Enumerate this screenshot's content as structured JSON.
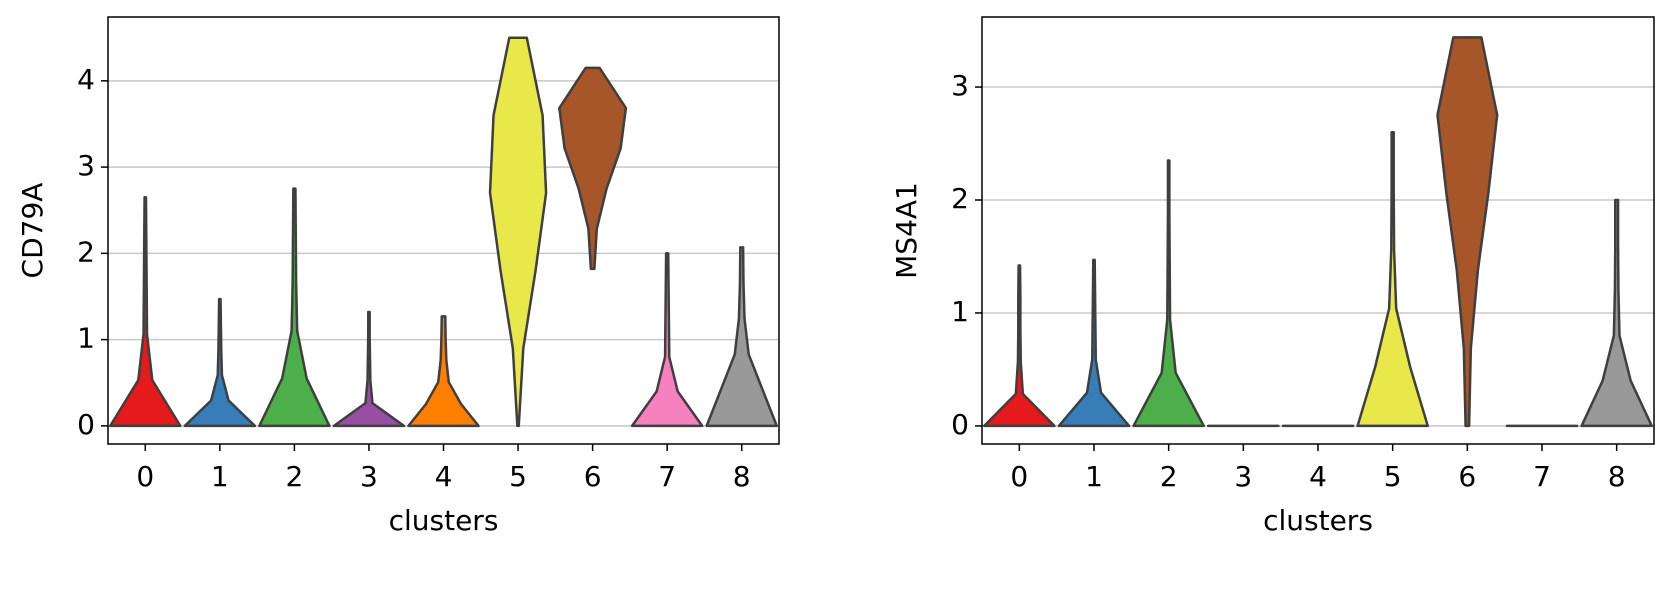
{
  "chart_data": [
    {
      "type": "violin",
      "ylabel": "CD79A",
      "xlabel": "clusters",
      "categories": [
        "0",
        "1",
        "2",
        "3",
        "4",
        "5",
        "6",
        "7",
        "8"
      ],
      "colors": [
        "#e41a1c",
        "#377eb8",
        "#4daf4a",
        "#984ea3",
        "#ff7f00",
        "#e8e84a",
        "#a65628",
        "#f781bf",
        "#999999"
      ],
      "minima": [
        0,
        0,
        0,
        0,
        0,
        0,
        1.82,
        0,
        0
      ],
      "maxima": [
        2.65,
        1.47,
        2.75,
        1.32,
        1.27,
        4.5,
        4.15,
        2.0,
        2.07
      ],
      "density": [
        [
          1,
          0.2,
          0.05,
          0.04,
          0.03,
          0.02
        ],
        [
          1,
          0.25,
          0.06,
          0.04,
          0.03,
          0.02
        ],
        [
          1,
          0.35,
          0.08,
          0.05,
          0.04,
          0.03
        ],
        [
          1,
          0.1,
          0.04,
          0.03,
          0.02,
          0.02
        ],
        [
          1,
          0.5,
          0.15,
          0.08,
          0.06,
          0.05
        ],
        [
          0.02,
          0.15,
          0.5,
          0.8,
          0.7,
          0.25
        ],
        [
          0.05,
          0.12,
          0.4,
          0.8,
          0.95,
          0.2
        ],
        [
          1,
          0.3,
          0.06,
          0.05,
          0.04,
          0.03
        ],
        [
          1,
          0.6,
          0.2,
          0.08,
          0.05,
          0.04
        ]
      ],
      "ylim": [
        -0.21,
        4.74
      ],
      "yticks": [
        0,
        1,
        2,
        3,
        4
      ],
      "grid": true
    },
    {
      "type": "violin",
      "ylabel": "MS4A1",
      "xlabel": "clusters",
      "categories": [
        "0",
        "1",
        "2",
        "3",
        "4",
        "5",
        "6",
        "7",
        "8"
      ],
      "colors": [
        "#e41a1c",
        "#377eb8",
        "#4daf4a",
        "#984ea3",
        "#ff7f00",
        "#e8e84a",
        "#a65628",
        "#f781bf",
        "#999999"
      ],
      "minima": [
        0,
        0,
        0,
        0,
        0,
        0,
        0,
        0,
        0
      ],
      "maxima": [
        1.42,
        1.47,
        2.35,
        0,
        0,
        2.6,
        3.44,
        0,
        2.0
      ],
      "density": [
        [
          1,
          0.1,
          0.04,
          0.03,
          0.03,
          0.02
        ],
        [
          1,
          0.2,
          0.05,
          0.04,
          0.03,
          0.02
        ],
        [
          1,
          0.2,
          0.04,
          0.03,
          0.02,
          0.02
        ],
        [
          1,
          1,
          1,
          1,
          1,
          1
        ],
        [
          1,
          1,
          1,
          1,
          1,
          1
        ],
        [
          1,
          0.5,
          0.1,
          0.04,
          0.03,
          0.03
        ],
        [
          0.05,
          0.1,
          0.3,
          0.6,
          0.85,
          0.4
        ],
        [
          1,
          1,
          1,
          1,
          1,
          1
        ],
        [
          1,
          0.4,
          0.08,
          0.05,
          0.04,
          0.04
        ]
      ],
      "ylim": [
        -0.16,
        3.62
      ],
      "yticks": [
        0,
        1,
        2,
        3
      ],
      "grid": true
    }
  ]
}
